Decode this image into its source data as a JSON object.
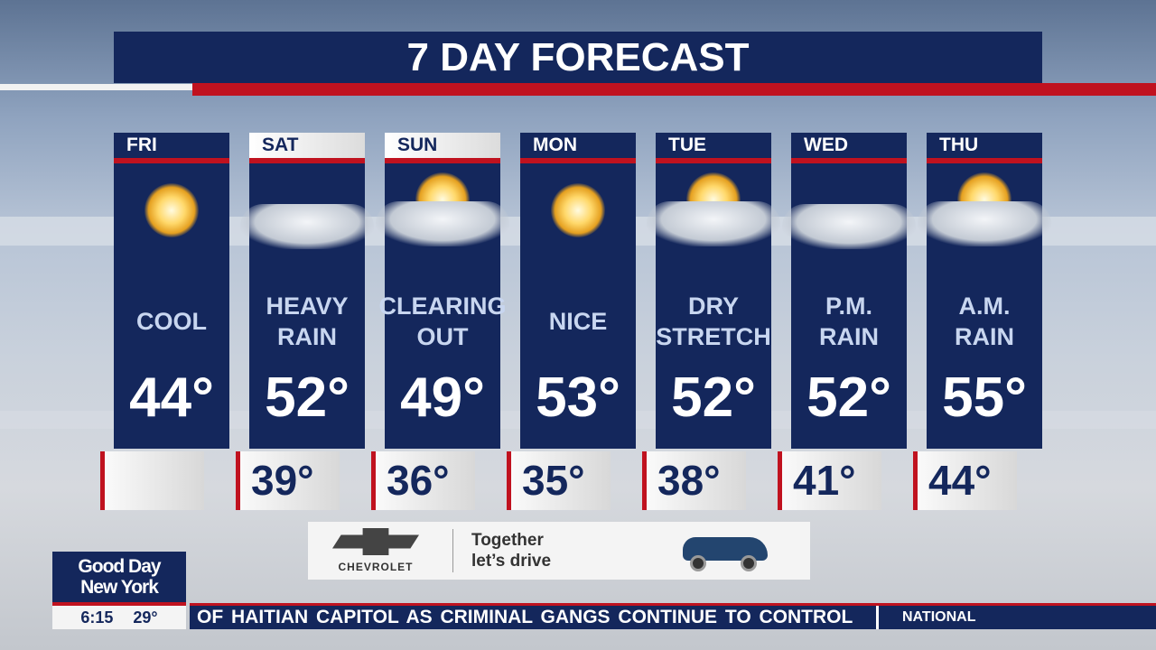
{
  "title": "7 DAY FORECAST",
  "days": [
    {
      "day": "FRI",
      "icon": "sun-icon",
      "desc": [
        "COOL"
      ],
      "high": "44°",
      "low": ""
    },
    {
      "day": "SAT",
      "icon": "cloud-icon",
      "desc": [
        "HEAVY",
        "RAIN"
      ],
      "high": "52°",
      "low": "39°"
    },
    {
      "day": "SUN",
      "icon": "partly-cloudy-icon",
      "desc": [
        "CLEARING",
        "OUT"
      ],
      "high": "49°",
      "low": "36°"
    },
    {
      "day": "MON",
      "icon": "sun-icon",
      "desc": [
        "NICE"
      ],
      "high": "53°",
      "low": "35°"
    },
    {
      "day": "TUE",
      "icon": "partly-cloudy-icon",
      "desc": [
        "DRY",
        "STRETCH"
      ],
      "high": "52°",
      "low": "38°"
    },
    {
      "day": "WED",
      "icon": "cloud-icon",
      "desc": [
        "P.M.",
        "RAIN"
      ],
      "high": "52°",
      "low": "41°"
    },
    {
      "day": "THU",
      "icon": "partly-cloudy-icon",
      "desc": [
        "A.M.",
        "RAIN"
      ],
      "high": "55°",
      "low": "44°"
    }
  ],
  "ad": {
    "brand": "CHEVROLET",
    "tagline_1": "Together",
    "tagline_2": "let’s drive"
  },
  "logo": {
    "line1": "Good Day",
    "line2": "New York",
    "time": "6:15",
    "temp": "29°"
  },
  "ticker": {
    "headline": "OF HAITIAN CAPITOL AS CRIMINAL GANGS CONTINUE TO CONTROL",
    "category": "NATIONAL"
  },
  "colors": {
    "navy": "#14275c",
    "red": "#c0121f",
    "desc_text": "#c8d6f0"
  }
}
